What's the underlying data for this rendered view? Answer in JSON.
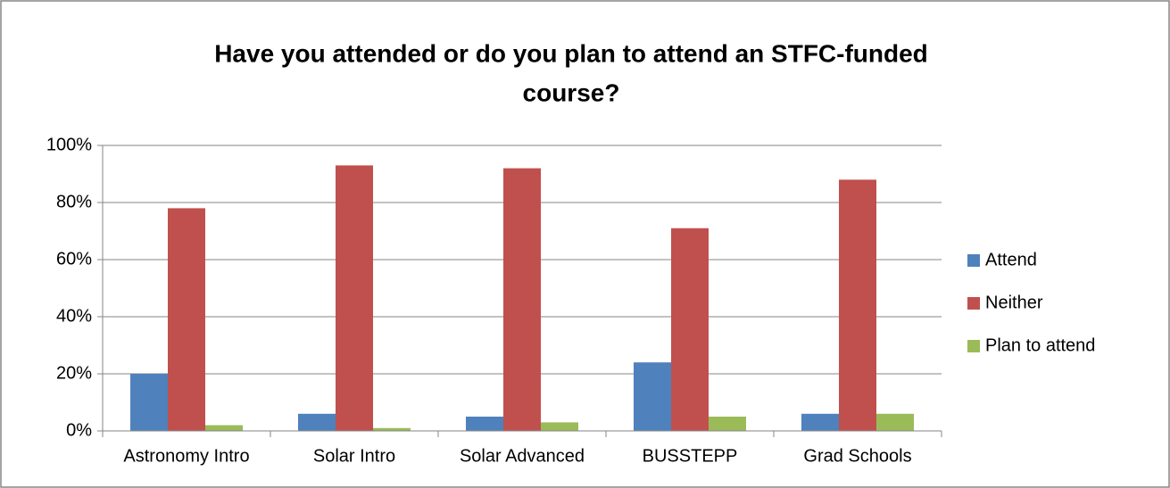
{
  "chart_data": {
    "type": "bar",
    "title": [
      "Have you attended or do you plan to attend an STFC-funded",
      "course?"
    ],
    "categories": [
      "Astronomy Intro",
      "Solar Intro",
      "Solar Advanced",
      "BUSSTEPP",
      "Grad Schools"
    ],
    "series": [
      {
        "name": "Attend",
        "color": "#4f81bd",
        "values": [
          20,
          6,
          5,
          24,
          6
        ]
      },
      {
        "name": "Neither",
        "color": "#c0504d",
        "values": [
          78,
          93,
          92,
          71,
          88
        ]
      },
      {
        "name": "Plan to attend",
        "color": "#9bbb59",
        "values": [
          2,
          1,
          3,
          5,
          6
        ]
      }
    ],
    "ylim": [
      0,
      100
    ],
    "yticks": [
      {
        "value": 0,
        "label": "0%"
      },
      {
        "value": 20,
        "label": "20%"
      },
      {
        "value": 40,
        "label": "40%"
      },
      {
        "value": 60,
        "label": "60%"
      },
      {
        "value": 80,
        "label": "80%"
      },
      {
        "value": 100,
        "label": "100%"
      }
    ],
    "grid": true,
    "legend": "right"
  }
}
